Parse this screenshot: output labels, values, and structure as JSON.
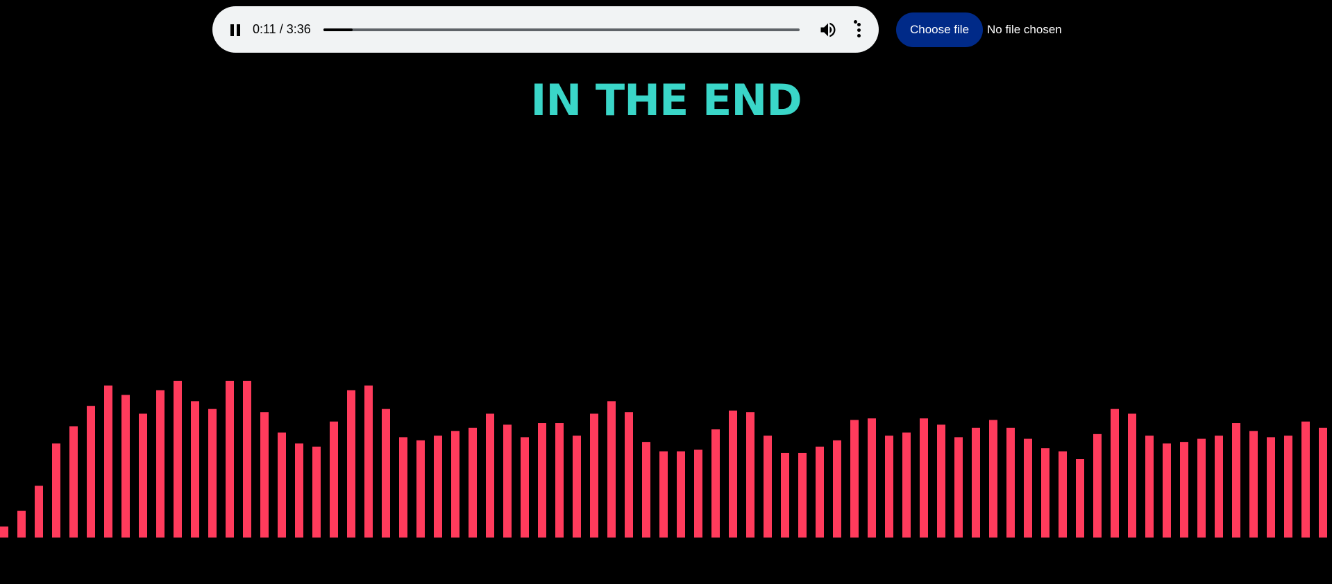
{
  "player": {
    "pause_icon": "pause-icon",
    "time_display": "0:11 / 3:36",
    "progress_fraction": 0.061,
    "volume_icon": "volume-icon",
    "menu_icon": "more-vert-icon"
  },
  "file_input": {
    "button_label": "Choose file",
    "status": "No file chosen"
  },
  "song_title": "IN THE END",
  "colors": {
    "background": "#000000",
    "title": "#3ad6c8",
    "bars": "#ff3b5c",
    "choose_button": "#002a88"
  },
  "visualizer": {
    "max_value": 1,
    "levels": [
      0.07,
      0.17,
      0.33,
      0.6,
      0.71,
      0.84,
      0.97,
      0.91,
      0.79,
      0.94,
      1.0,
      0.87,
      0.82,
      1.0,
      1.0,
      0.8,
      0.67,
      0.6,
      0.58,
      0.74,
      0.94,
      0.97,
      0.82,
      0.64,
      0.62,
      0.65,
      0.68,
      0.7,
      0.79,
      0.72,
      0.64,
      0.73,
      0.73,
      0.65,
      0.79,
      0.87,
      0.8,
      0.61,
      0.55,
      0.55,
      0.56,
      0.69,
      0.81,
      0.8,
      0.65,
      0.54,
      0.54,
      0.58,
      0.62,
      0.75,
      0.76,
      0.65,
      0.67,
      0.76,
      0.72,
      0.64,
      0.7,
      0.75,
      0.7,
      0.63,
      0.57,
      0.55,
      0.5,
      0.66,
      0.82,
      0.79,
      0.65,
      0.6,
      0.61,
      0.63,
      0.65,
      0.73,
      0.68,
      0.64,
      0.65,
      0.74,
      0.7
    ]
  }
}
